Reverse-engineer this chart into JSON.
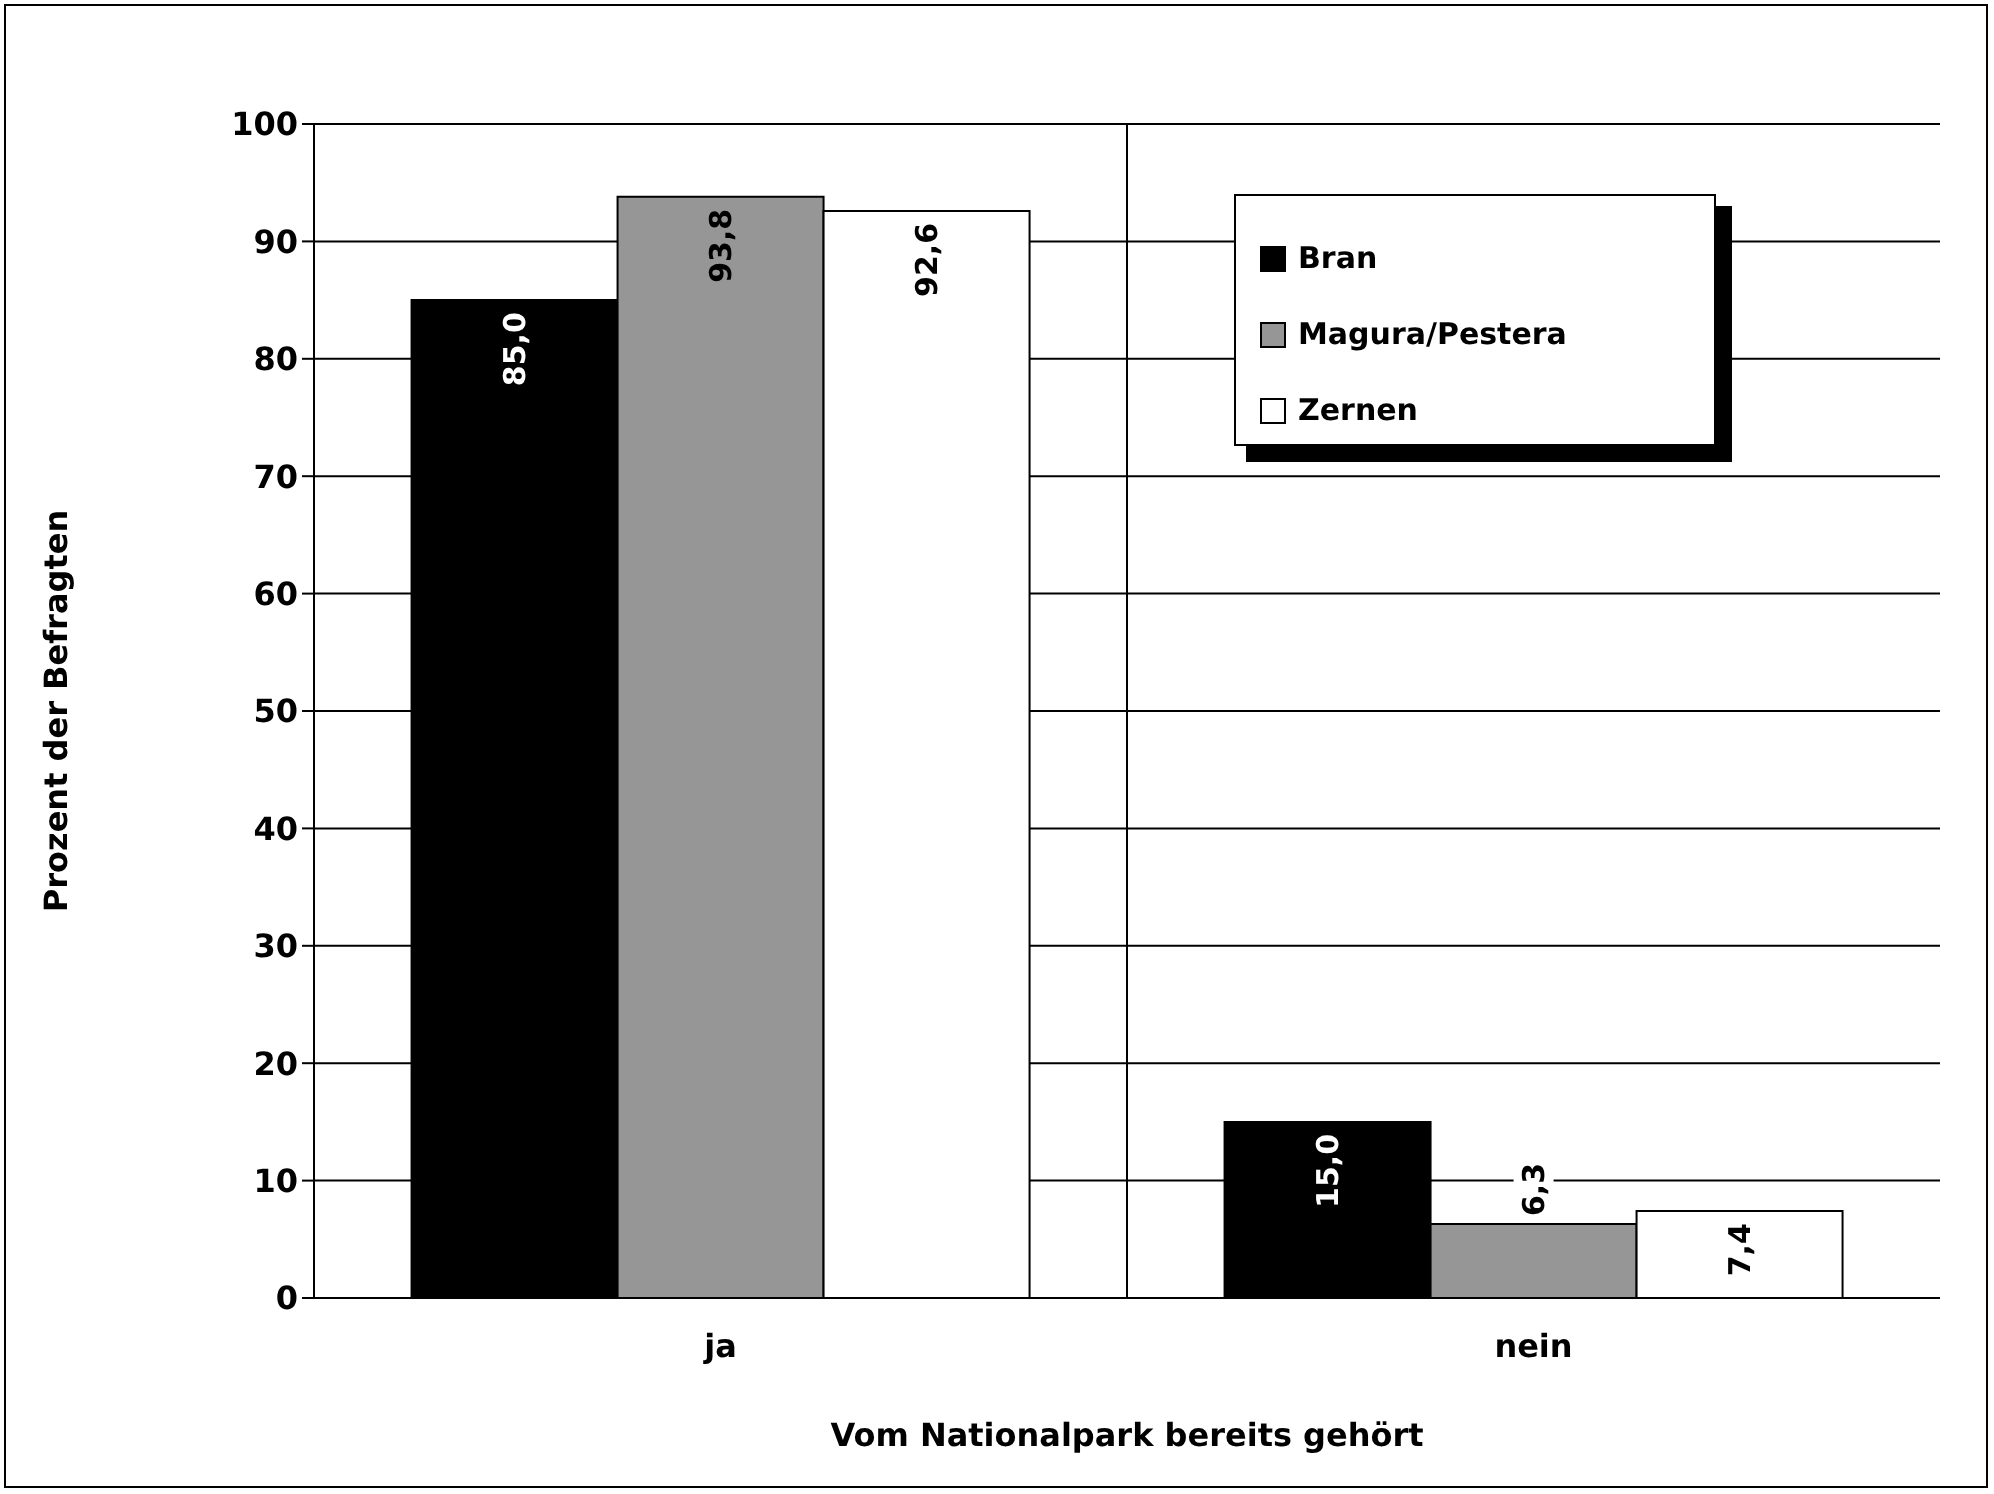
{
  "chart_data": {
    "type": "bar",
    "xlabel": "Vom Nationalpark bereits gehört",
    "ylabel": "Prozent der Befragten",
    "categories": [
      "ja",
      "nein"
    ],
    "series": [
      {
        "name": "Bran",
        "color": "#000000",
        "values": [
          85.0,
          15.0
        ],
        "value_labels": [
          "85,0",
          "15,0"
        ]
      },
      {
        "name": "Magura/Pestera",
        "color": "#969696",
        "values": [
          93.8,
          6.3
        ],
        "value_labels": [
          "93,8",
          "6,3"
        ]
      },
      {
        "name": "Zernen",
        "color": "#ffffff",
        "values": [
          92.6,
          7.4
        ],
        "value_labels": [
          "92,6",
          "7,4"
        ]
      }
    ],
    "ylim": [
      0,
      100
    ],
    "yticks": [
      0,
      10,
      20,
      30,
      40,
      50,
      60,
      70,
      80,
      90,
      100
    ],
    "grid": true,
    "legend": "top right"
  }
}
